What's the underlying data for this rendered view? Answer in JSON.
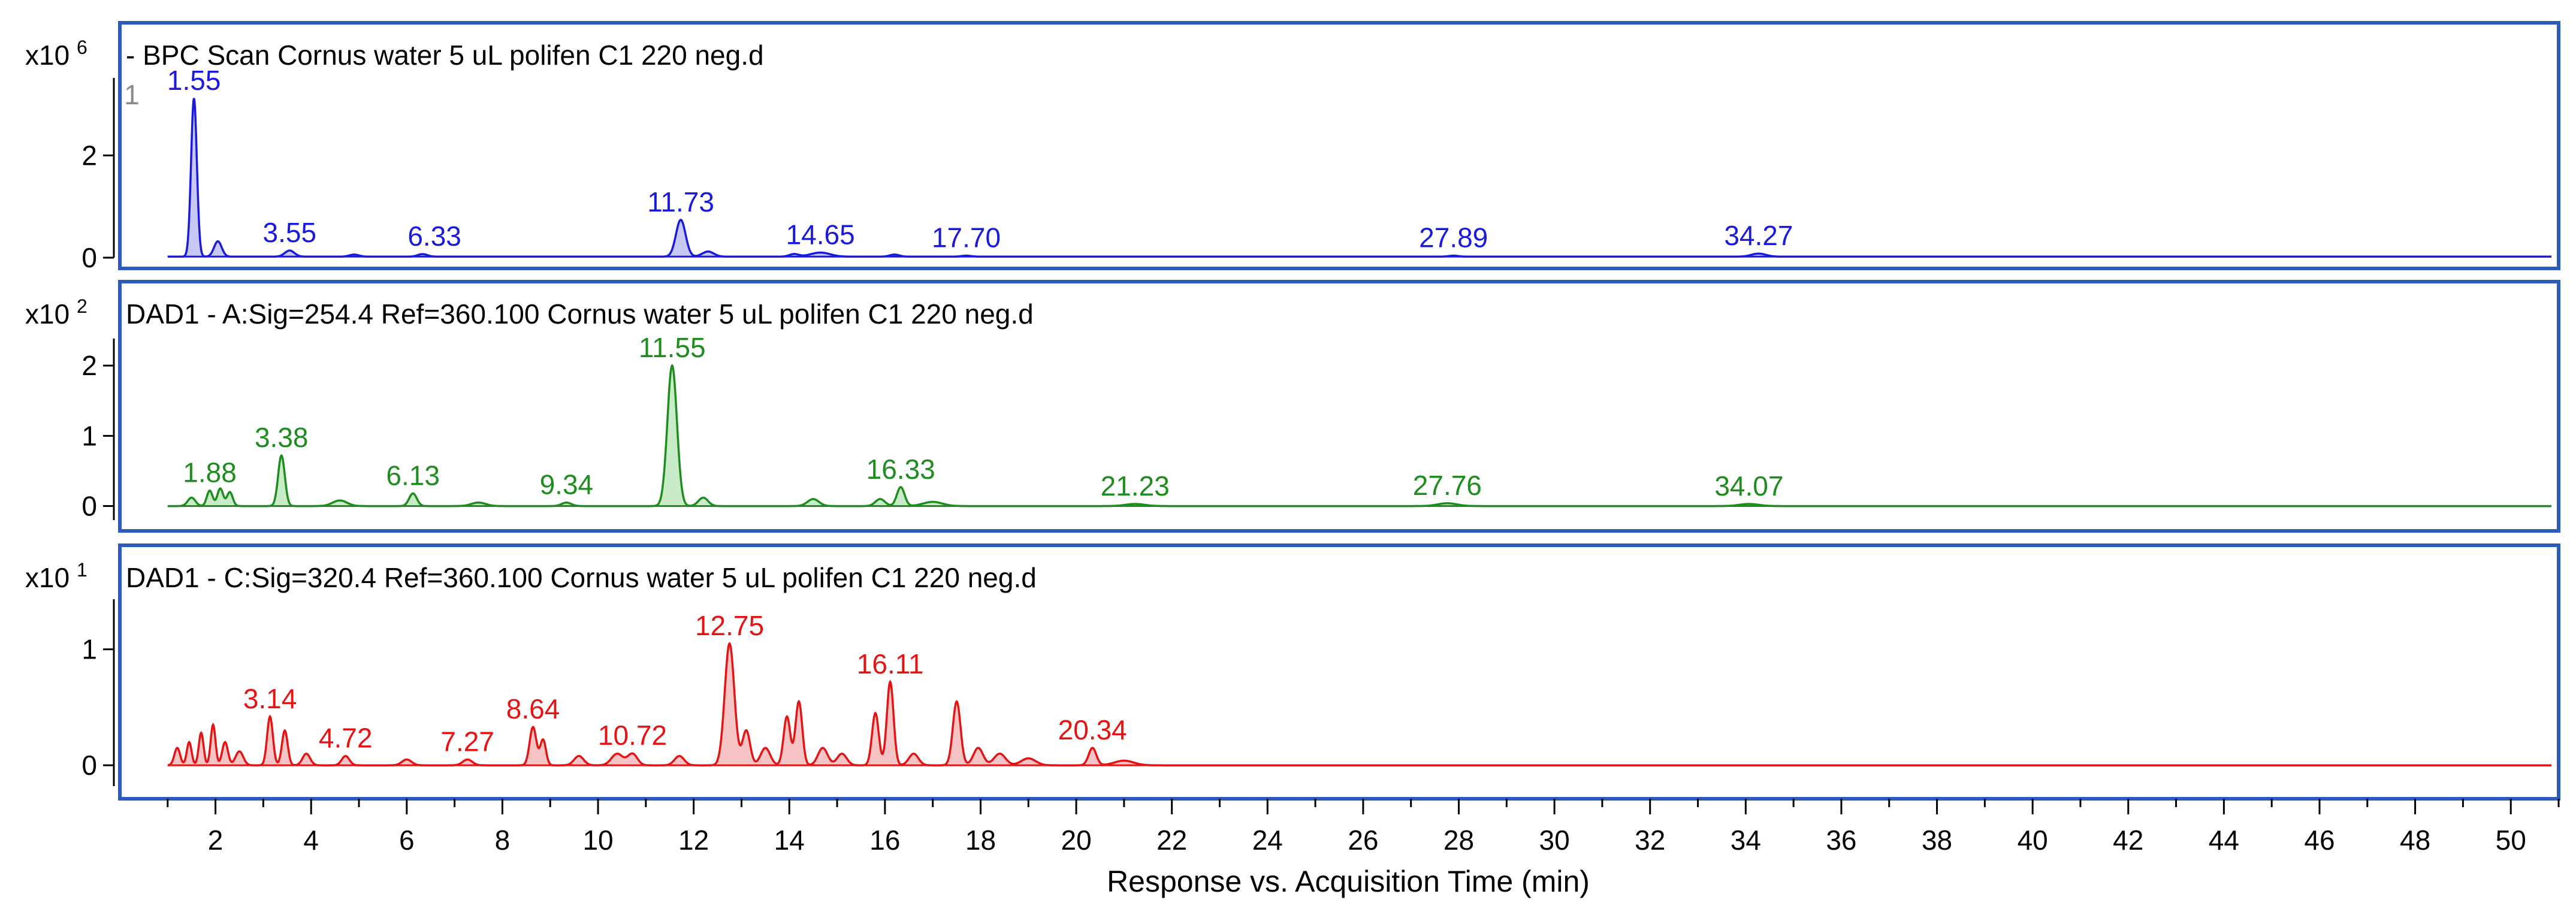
{
  "chart_data": {
    "type": "line",
    "xlabel": "Response vs. Acquisition Time (min)",
    "xlim": [
      0,
      51
    ],
    "xticks": [
      2,
      4,
      6,
      8,
      10,
      12,
      14,
      16,
      18,
      20,
      22,
      24,
      26,
      28,
      30,
      32,
      34,
      36,
      38,
      40,
      42,
      44,
      46,
      48,
      50
    ],
    "panels": [
      {
        "id": "bpc",
        "title": "- BPC Scan Cornus water 5 uL polifen C1 220 neg.d",
        "scale_label": "x10",
        "scale_exp": "6",
        "ylim": [
          0,
          3.4
        ],
        "yticks": [
          0,
          2
        ],
        "color": "#1a1adc",
        "fill": "#c8c8f4",
        "baseline": 0.02,
        "edge_label": "1",
        "edge_label_t": 0.25,
        "edge_label_y": 3.0,
        "peaks": [
          {
            "t": 1.55,
            "h": 3.1,
            "w": 0.06,
            "label": "1.55",
            "label_dt": 0.0
          },
          {
            "t": 2.05,
            "h": 0.3,
            "w": 0.08,
            "label": "",
            "label_dt": 0.0
          },
          {
            "t": 3.55,
            "h": 0.12,
            "w": 0.1,
            "label": "3.55",
            "label_dt": 0.0
          },
          {
            "t": 4.9,
            "h": 0.04,
            "w": 0.1,
            "label": "",
            "label_dt": 0.0
          },
          {
            "t": 6.33,
            "h": 0.05,
            "w": 0.1,
            "label": "6.33",
            "label_dt": 0.25
          },
          {
            "t": 11.73,
            "h": 0.72,
            "w": 0.1,
            "label": "11.73",
            "label_dt": 0.0
          },
          {
            "t": 12.3,
            "h": 0.1,
            "w": 0.12,
            "label": "",
            "label_dt": 0.0
          },
          {
            "t": 14.1,
            "h": 0.05,
            "w": 0.1,
            "label": "",
            "label_dt": 0.0
          },
          {
            "t": 14.65,
            "h": 0.08,
            "w": 0.2,
            "label": "14.65",
            "label_dt": 0.0
          },
          {
            "t": 16.2,
            "h": 0.04,
            "w": 0.1,
            "label": "",
            "label_dt": 0.0
          },
          {
            "t": 17.7,
            "h": 0.02,
            "w": 0.1,
            "label": "17.70",
            "label_dt": 0.0
          },
          {
            "t": 27.89,
            "h": 0.02,
            "w": 0.1,
            "label": "27.89",
            "label_dt": 0.0
          },
          {
            "t": 34.27,
            "h": 0.06,
            "w": 0.15,
            "label": "34.27",
            "label_dt": 0.0
          }
        ]
      },
      {
        "id": "dad254",
        "title": "DAD1 - A:Sig=254.4  Ref=360.100 Cornus water 5 uL polifen C1 220 neg.d",
        "scale_label": "x10",
        "scale_exp": "2",
        "ylim": [
          -0.2,
          2.3
        ],
        "yticks": [
          0,
          1,
          2
        ],
        "color": "#1e8c1e",
        "fill": "#c8ecc8",
        "baseline": 0.0,
        "edge_label": "",
        "edge_label_t": 0,
        "edge_label_y": 0,
        "peaks": [
          {
            "t": 1.5,
            "h": 0.12,
            "w": 0.08,
            "label": "",
            "label_dt": 0.0
          },
          {
            "t": 1.88,
            "h": 0.22,
            "w": 0.06,
            "label": "1.88",
            "label_dt": 0.0
          },
          {
            "t": 2.1,
            "h": 0.25,
            "w": 0.06,
            "label": "",
            "label_dt": 0.0
          },
          {
            "t": 2.3,
            "h": 0.2,
            "w": 0.06,
            "label": "",
            "label_dt": 0.0
          },
          {
            "t": 3.38,
            "h": 0.72,
            "w": 0.07,
            "label": "3.38",
            "label_dt": 0.0
          },
          {
            "t": 4.6,
            "h": 0.08,
            "w": 0.15,
            "label": "",
            "label_dt": 0.0
          },
          {
            "t": 6.13,
            "h": 0.18,
            "w": 0.08,
            "label": "6.13",
            "label_dt": 0.0
          },
          {
            "t": 7.5,
            "h": 0.05,
            "w": 0.15,
            "label": "",
            "label_dt": 0.0
          },
          {
            "t": 9.34,
            "h": 0.05,
            "w": 0.1,
            "label": "9.34",
            "label_dt": 0.0
          },
          {
            "t": 11.55,
            "h": 2.0,
            "w": 0.1,
            "label": "11.55",
            "label_dt": 0.0
          },
          {
            "t": 12.2,
            "h": 0.12,
            "w": 0.1,
            "label": "",
            "label_dt": 0.0
          },
          {
            "t": 14.5,
            "h": 0.1,
            "w": 0.12,
            "label": "",
            "label_dt": 0.0
          },
          {
            "t": 15.9,
            "h": 0.1,
            "w": 0.1,
            "label": "",
            "label_dt": 0.0
          },
          {
            "t": 16.33,
            "h": 0.27,
            "w": 0.08,
            "label": "16.33",
            "label_dt": 0.0
          },
          {
            "t": 17.0,
            "h": 0.06,
            "w": 0.2,
            "label": "",
            "label_dt": 0.0
          },
          {
            "t": 21.23,
            "h": 0.03,
            "w": 0.2,
            "label": "21.23",
            "label_dt": 0.0
          },
          {
            "t": 27.76,
            "h": 0.04,
            "w": 0.2,
            "label": "27.76",
            "label_dt": 0.0
          },
          {
            "t": 34.07,
            "h": 0.03,
            "w": 0.2,
            "label": "34.07",
            "label_dt": 0.0
          }
        ]
      },
      {
        "id": "dad320",
        "title": "DAD1 - C:Sig=320.4  Ref=360.100 Cornus water 5 uL polifen C1 220 neg.d",
        "scale_label": "x10",
        "scale_exp": "1",
        "ylim": [
          -0.18,
          1.38
        ],
        "yticks": [
          0,
          1
        ],
        "color": "#e41414",
        "fill": "#f6c4c4",
        "baseline": 0.0,
        "edge_label": "",
        "edge_label_t": 0,
        "edge_label_y": 0,
        "peaks": [
          {
            "t": 1.2,
            "h": 0.15,
            "w": 0.06,
            "label": "",
            "label_dt": 0.0
          },
          {
            "t": 1.45,
            "h": 0.2,
            "w": 0.05,
            "label": "",
            "label_dt": 0.0
          },
          {
            "t": 1.7,
            "h": 0.28,
            "w": 0.05,
            "label": "",
            "label_dt": 0.0
          },
          {
            "t": 1.95,
            "h": 0.35,
            "w": 0.05,
            "label": "",
            "label_dt": 0.0
          },
          {
            "t": 2.2,
            "h": 0.2,
            "w": 0.06,
            "label": "",
            "label_dt": 0.0
          },
          {
            "t": 2.5,
            "h": 0.12,
            "w": 0.08,
            "label": "",
            "label_dt": 0.0
          },
          {
            "t": 3.14,
            "h": 0.42,
            "w": 0.06,
            "label": "3.14",
            "label_dt": 0.0
          },
          {
            "t": 3.45,
            "h": 0.3,
            "w": 0.06,
            "label": "",
            "label_dt": 0.0
          },
          {
            "t": 3.9,
            "h": 0.1,
            "w": 0.08,
            "label": "",
            "label_dt": 0.0
          },
          {
            "t": 4.72,
            "h": 0.08,
            "w": 0.08,
            "label": "4.72",
            "label_dt": 0.0
          },
          {
            "t": 6.0,
            "h": 0.05,
            "w": 0.1,
            "label": "",
            "label_dt": 0.0
          },
          {
            "t": 7.27,
            "h": 0.05,
            "w": 0.1,
            "label": "7.27",
            "label_dt": 0.0
          },
          {
            "t": 8.64,
            "h": 0.33,
            "w": 0.07,
            "label": "8.64",
            "label_dt": 0.0
          },
          {
            "t": 8.85,
            "h": 0.22,
            "w": 0.06,
            "label": "",
            "label_dt": 0.0
          },
          {
            "t": 9.6,
            "h": 0.08,
            "w": 0.1,
            "label": "",
            "label_dt": 0.0
          },
          {
            "t": 10.4,
            "h": 0.1,
            "w": 0.12,
            "label": "",
            "label_dt": 0.0
          },
          {
            "t": 10.72,
            "h": 0.1,
            "w": 0.1,
            "label": "10.72",
            "label_dt": 0.0
          },
          {
            "t": 11.7,
            "h": 0.08,
            "w": 0.1,
            "label": "",
            "label_dt": 0.0
          },
          {
            "t": 12.75,
            "h": 1.05,
            "w": 0.1,
            "label": "12.75",
            "label_dt": 0.0
          },
          {
            "t": 13.1,
            "h": 0.3,
            "w": 0.08,
            "label": "",
            "label_dt": 0.0
          },
          {
            "t": 13.5,
            "h": 0.15,
            "w": 0.1,
            "label": "",
            "label_dt": 0.0
          },
          {
            "t": 13.95,
            "h": 0.42,
            "w": 0.07,
            "label": "",
            "label_dt": 0.0
          },
          {
            "t": 14.2,
            "h": 0.55,
            "w": 0.07,
            "label": "",
            "label_dt": 0.0
          },
          {
            "t": 14.7,
            "h": 0.15,
            "w": 0.1,
            "label": "",
            "label_dt": 0.0
          },
          {
            "t": 15.1,
            "h": 0.1,
            "w": 0.1,
            "label": "",
            "label_dt": 0.0
          },
          {
            "t": 15.8,
            "h": 0.45,
            "w": 0.07,
            "label": "",
            "label_dt": 0.0
          },
          {
            "t": 16.11,
            "h": 0.72,
            "w": 0.07,
            "label": "16.11",
            "label_dt": 0.0
          },
          {
            "t": 16.6,
            "h": 0.1,
            "w": 0.1,
            "label": "",
            "label_dt": 0.0
          },
          {
            "t": 17.5,
            "h": 0.55,
            "w": 0.08,
            "label": "",
            "label_dt": 0.0
          },
          {
            "t": 17.95,
            "h": 0.15,
            "w": 0.1,
            "label": "",
            "label_dt": 0.0
          },
          {
            "t": 18.4,
            "h": 0.1,
            "w": 0.12,
            "label": "",
            "label_dt": 0.0
          },
          {
            "t": 19.0,
            "h": 0.06,
            "w": 0.15,
            "label": "",
            "label_dt": 0.0
          },
          {
            "t": 20.34,
            "h": 0.15,
            "w": 0.08,
            "label": "20.34",
            "label_dt": 0.0
          },
          {
            "t": 21.0,
            "h": 0.04,
            "w": 0.2,
            "label": "",
            "label_dt": 0.0
          }
        ]
      }
    ]
  }
}
